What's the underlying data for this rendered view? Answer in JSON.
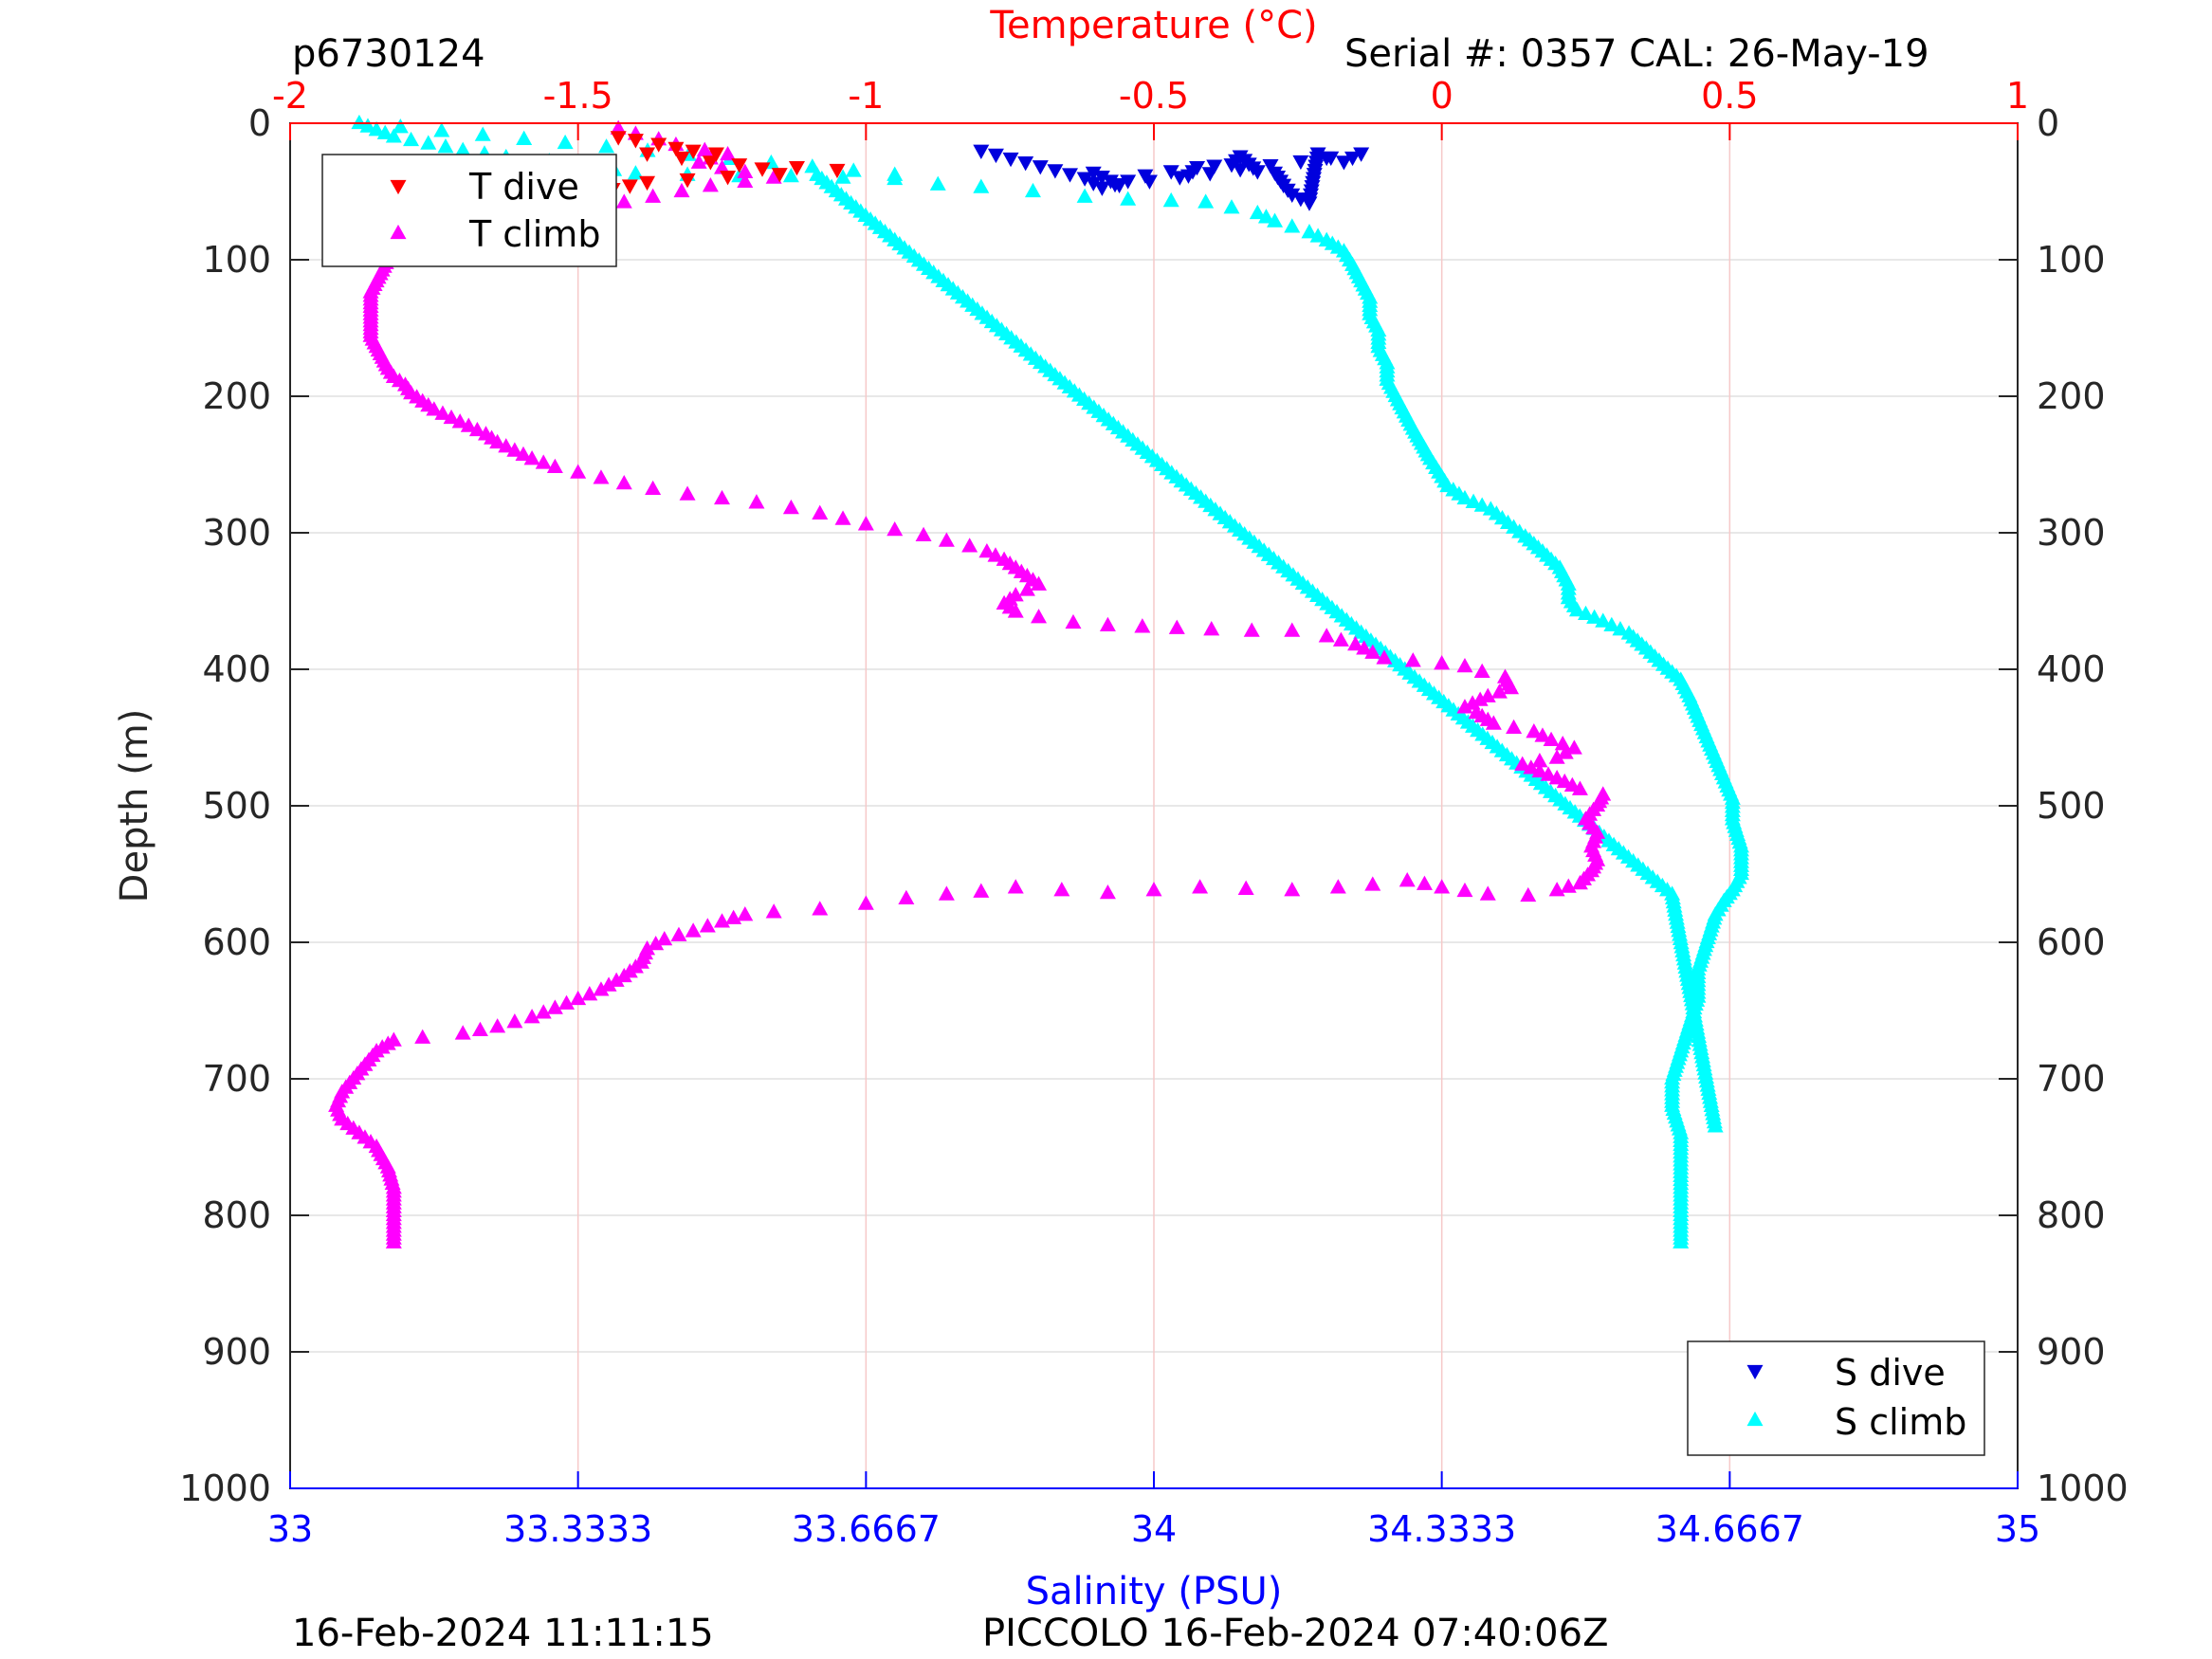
{
  "header": {
    "left": "p6730124",
    "right": "Serial #: 0357  CAL: 26-May-19"
  },
  "footer": {
    "left": "16-Feb-2024 11:11:15",
    "center": "PICCOLO 16-Feb-2024 07:40:06Z"
  },
  "colors": {
    "temperature_axis": "#ff0000",
    "salinity_axis": "#0000ff",
    "t_dive": "#ff0000",
    "t_climb": "#ff00ff",
    "s_dive": "#0000dd",
    "s_climb": "#00ffff",
    "grid": "#e0e0e0",
    "vgrid": "#f6c9c9"
  },
  "chart_data": {
    "type": "scatter",
    "grid": true,
    "y_axis": {
      "label": "Depth (m)",
      "range": [
        0,
        1000
      ],
      "reversed": true,
      "ticks": [
        0,
        100,
        200,
        300,
        400,
        500,
        600,
        700,
        800,
        900,
        1000
      ],
      "tick_labels": [
        "0",
        "100",
        "200",
        "300",
        "400",
        "500",
        "600",
        "700",
        "800",
        "900",
        "1000"
      ]
    },
    "temperature_axis": {
      "label": "Temperature (°C)",
      "position": "top",
      "range": [
        -2,
        1
      ],
      "ticks": [
        -2,
        -1.5,
        -1,
        -0.5,
        0,
        0.5,
        1
      ],
      "tick_labels": [
        "-2",
        "-1.5",
        "-1",
        "-0.5",
        "0",
        "0.5",
        "1"
      ]
    },
    "salinity_axis": {
      "label": "Salinity (PSU)",
      "position": "bottom",
      "range": [
        33,
        35
      ],
      "ticks": [
        33,
        33.3333,
        33.6667,
        34,
        34.3333,
        34.6667,
        35
      ],
      "tick_labels": [
        "33",
        "33.3333",
        "33.6667",
        "34",
        "34.3333",
        "34.6667",
        "35"
      ]
    },
    "legends": [
      {
        "position": "top-left",
        "entries": [
          {
            "label": "T dive",
            "series": "t_dive"
          },
          {
            "label": "T climb",
            "series": "t_climb"
          }
        ]
      },
      {
        "position": "bottom-right",
        "entries": [
          {
            "label": "S dive",
            "series": "s_dive"
          },
          {
            "label": "S climb",
            "series": "s_climb"
          }
        ]
      }
    ],
    "series": [
      {
        "name": "T dive",
        "key": "t_dive",
        "axis": "temperature",
        "marker": "triangle-down",
        "points": [
          [
            -1.43,
            10
          ],
          [
            -1.4,
            12
          ],
          [
            -1.36,
            15
          ],
          [
            -1.33,
            18
          ],
          [
            -1.3,
            20
          ],
          [
            -1.26,
            22
          ],
          [
            -1.38,
            22
          ],
          [
            -1.32,
            25
          ],
          [
            -1.27,
            28
          ],
          [
            -1.22,
            30
          ],
          [
            -1.18,
            33
          ],
          [
            -1.12,
            32
          ],
          [
            -1.05,
            34
          ],
          [
            -1.15,
            37
          ],
          [
            -1.24,
            39
          ],
          [
            -1.31,
            41
          ],
          [
            -1.38,
            43
          ],
          [
            -1.44,
            48
          ],
          [
            -1.48,
            54
          ],
          [
            -1.5,
            58
          ],
          [
            -1.51,
            62
          ]
        ]
      },
      {
        "name": "T climb",
        "key": "t_climb",
        "axis": "temperature",
        "marker": "triangle-up",
        "points": [
          [
            -1.82,
            820
          ],
          [
            -1.82,
            800
          ],
          [
            -1.82,
            780
          ],
          [
            -1.83,
            765
          ],
          [
            -1.85,
            750
          ],
          [
            -1.88,
            740
          ],
          [
            -1.91,
            730
          ],
          [
            -1.92,
            720
          ],
          [
            -1.91,
            710
          ],
          [
            -1.89,
            700
          ],
          [
            -1.87,
            690
          ],
          [
            -1.85,
            680
          ],
          [
            -1.82,
            672
          ],
          [
            -1.77,
            670
          ],
          [
            -1.7,
            667
          ],
          [
            -1.64,
            662
          ],
          [
            -1.58,
            655
          ],
          [
            -1.52,
            645
          ],
          [
            -1.46,
            635
          ],
          [
            -1.42,
            625
          ],
          [
            -1.39,
            615
          ],
          [
            -1.38,
            605
          ],
          [
            -1.35,
            598
          ],
          [
            -1.3,
            592
          ],
          [
            -1.25,
            585
          ],
          [
            -1.21,
            580
          ],
          [
            -1.16,
            578
          ],
          [
            -1.08,
            576
          ],
          [
            -1.0,
            572
          ],
          [
            -0.93,
            568
          ],
          [
            -0.86,
            565
          ],
          [
            -0.8,
            563
          ],
          [
            -0.74,
            560
          ],
          [
            -0.66,
            562
          ],
          [
            -0.58,
            564
          ],
          [
            -0.5,
            562
          ],
          [
            -0.42,
            560
          ],
          [
            -0.34,
            561
          ],
          [
            -0.26,
            562
          ],
          [
            -0.18,
            560
          ],
          [
            -0.12,
            558
          ],
          [
            -0.06,
            555
          ],
          [
            0.0,
            560
          ],
          [
            0.08,
            565
          ],
          [
            0.15,
            566
          ],
          [
            0.2,
            562
          ],
          [
            0.24,
            557
          ],
          [
            0.26,
            548
          ],
          [
            0.27,
            540
          ],
          [
            0.26,
            530
          ],
          [
            0.27,
            520
          ],
          [
            0.25,
            510
          ],
          [
            0.27,
            500
          ],
          [
            0.28,
            492
          ],
          [
            0.24,
            488
          ],
          [
            0.2,
            480
          ],
          [
            0.17,
            475
          ],
          [
            0.14,
            470
          ],
          [
            0.2,
            465
          ],
          [
            0.23,
            458
          ],
          [
            0.19,
            452
          ],
          [
            0.16,
            446
          ],
          [
            0.09,
            440
          ],
          [
            0.06,
            432
          ],
          [
            0.04,
            428
          ],
          [
            0.08,
            420
          ],
          [
            0.12,
            414
          ],
          [
            0.11,
            406
          ],
          [
            0.07,
            402
          ],
          [
            0.04,
            398
          ],
          [
            0.0,
            396
          ],
          [
            -0.05,
            394
          ],
          [
            -0.1,
            392
          ],
          [
            -0.12,
            388
          ],
          [
            -0.15,
            382
          ],
          [
            -0.2,
            376
          ],
          [
            -0.26,
            372
          ],
          [
            -0.33,
            372
          ],
          [
            -0.4,
            371
          ],
          [
            -0.46,
            370
          ],
          [
            -0.52,
            369
          ],
          [
            -0.58,
            368
          ],
          [
            -0.64,
            366
          ],
          [
            -0.7,
            362
          ],
          [
            -0.74,
            358
          ],
          [
            -0.76,
            352
          ],
          [
            -0.74,
            346
          ],
          [
            -0.72,
            342
          ],
          [
            -0.7,
            338
          ],
          [
            -0.72,
            332
          ],
          [
            -0.74,
            326
          ],
          [
            -0.76,
            320
          ],
          [
            -0.79,
            314
          ],
          [
            -0.82,
            310
          ],
          [
            -0.86,
            306
          ],
          [
            -0.9,
            302
          ],
          [
            -0.95,
            298
          ],
          [
            -1.0,
            294
          ],
          [
            -1.04,
            290
          ],
          [
            -1.08,
            286
          ],
          [
            -1.13,
            282
          ],
          [
            -1.19,
            278
          ],
          [
            -1.25,
            275
          ],
          [
            -1.31,
            272
          ],
          [
            -1.37,
            268
          ],
          [
            -1.42,
            264
          ],
          [
            -1.46,
            260
          ],
          [
            -1.5,
            256
          ],
          [
            -1.54,
            252
          ],
          [
            -1.58,
            246
          ],
          [
            -1.61,
            240
          ],
          [
            -1.64,
            234
          ],
          [
            -1.66,
            228
          ],
          [
            -1.69,
            222
          ],
          [
            -1.72,
            216
          ],
          [
            -1.75,
            210
          ],
          [
            -1.77,
            204
          ],
          [
            -1.79,
            198
          ],
          [
            -1.8,
            192
          ],
          [
            -1.82,
            186
          ],
          [
            -1.83,
            180
          ],
          [
            -1.84,
            172
          ],
          [
            -1.85,
            164
          ],
          [
            -1.86,
            156
          ],
          [
            -1.86,
            148
          ],
          [
            -1.86,
            140
          ],
          [
            -1.86,
            132
          ],
          [
            -1.86,
            124
          ],
          [
            -1.85,
            116
          ],
          [
            -1.84,
            108
          ],
          [
            -1.83,
            100
          ],
          [
            -1.81,
            92
          ],
          [
            -1.79,
            85
          ],
          [
            -1.76,
            79
          ],
          [
            -1.72,
            75
          ],
          [
            -1.67,
            71
          ],
          [
            -1.6,
            67
          ],
          [
            -1.53,
            64
          ],
          [
            -1.47,
            61
          ],
          [
            -1.42,
            58
          ],
          [
            -1.37,
            54
          ],
          [
            -1.32,
            50
          ],
          [
            -1.27,
            46
          ],
          [
            -1.21,
            43
          ],
          [
            -1.16,
            40
          ],
          [
            -1.21,
            36
          ],
          [
            -1.25,
            33
          ],
          [
            -1.29,
            29
          ],
          [
            -1.27,
            26
          ],
          [
            -1.24,
            23
          ],
          [
            -1.28,
            20
          ],
          [
            -1.33,
            16
          ],
          [
            -1.36,
            12
          ],
          [
            -1.4,
            8
          ],
          [
            -1.43,
            4
          ]
        ]
      },
      {
        "name": "S dive",
        "key": "s_dive",
        "axis": "salinity",
        "marker": "triangle-down",
        "points": [
          [
            33.8,
            20
          ],
          [
            33.92,
            40
          ],
          [
            33.94,
            47
          ],
          [
            33.97,
            42
          ],
          [
            33.99,
            38
          ],
          [
            34.02,
            35
          ],
          [
            34.04,
            38
          ],
          [
            34.05,
            32
          ],
          [
            34.07,
            31
          ],
          [
            34.09,
            30
          ],
          [
            34.1,
            24
          ],
          [
            34.12,
            35
          ],
          [
            34.14,
            36
          ],
          [
            34.15,
            45
          ],
          [
            34.16,
            52
          ],
          [
            34.18,
            58
          ],
          [
            34.19,
            22
          ],
          [
            34.2,
            25
          ],
          [
            34.22,
            28
          ],
          [
            34.23,
            25
          ],
          [
            34.24,
            22
          ],
          [
            33.96,
            45
          ],
          [
            33.93,
            36
          ]
        ]
      },
      {
        "name": "S climb",
        "key": "s_climb",
        "axis": "salinity",
        "marker": "triangle-up",
        "points": [
          [
            34.61,
            820
          ],
          [
            34.61,
            800
          ],
          [
            34.61,
            780
          ],
          [
            34.61,
            760
          ],
          [
            34.61,
            740
          ],
          [
            34.6,
            720
          ],
          [
            34.6,
            700
          ],
          [
            34.61,
            680
          ],
          [
            34.62,
            660
          ],
          [
            34.63,
            640
          ],
          [
            34.63,
            620
          ],
          [
            34.64,
            600
          ],
          [
            34.65,
            580
          ],
          [
            34.66,
            570
          ],
          [
            34.67,
            562
          ],
          [
            34.68,
            550
          ],
          [
            34.68,
            530
          ],
          [
            34.67,
            510
          ],
          [
            34.67,
            495
          ],
          [
            34.66,
            480
          ],
          [
            34.65,
            465
          ],
          [
            34.64,
            450
          ],
          [
            34.63,
            435
          ],
          [
            34.62,
            420
          ],
          [
            34.61,
            408
          ],
          [
            34.59,
            397
          ],
          [
            34.57,
            385
          ],
          [
            34.55,
            374
          ],
          [
            34.52,
            365
          ],
          [
            34.49,
            357
          ],
          [
            34.48,
            348
          ],
          [
            34.48,
            338
          ],
          [
            34.47,
            326
          ],
          [
            34.45,
            314
          ],
          [
            34.43,
            303
          ],
          [
            34.41,
            293
          ],
          [
            34.39,
            283
          ],
          [
            34.36,
            275
          ],
          [
            34.34,
            266
          ],
          [
            34.33,
            256
          ],
          [
            34.32,
            246
          ],
          [
            34.31,
            235
          ],
          [
            34.3,
            224
          ],
          [
            34.29,
            212
          ],
          [
            34.28,
            200
          ],
          [
            34.27,
            188
          ],
          [
            34.27,
            176
          ],
          [
            34.26,
            164
          ],
          [
            34.26,
            152
          ],
          [
            34.25,
            140
          ],
          [
            34.25,
            128
          ],
          [
            34.24,
            116
          ],
          [
            34.23,
            104
          ],
          [
            34.22,
            94
          ],
          [
            34.2,
            86
          ],
          [
            34.18,
            80
          ],
          [
            34.16,
            76
          ],
          [
            34.14,
            72
          ],
          [
            34.12,
            66
          ],
          [
            34.09,
            62
          ],
          [
            34.06,
            58
          ],
          [
            34.02,
            57
          ],
          [
            33.97,
            56
          ],
          [
            33.92,
            54
          ],
          [
            33.86,
            50
          ],
          [
            33.8,
            47
          ],
          [
            33.75,
            45
          ],
          [
            33.7,
            41
          ],
          [
            33.64,
            40
          ],
          [
            33.58,
            39
          ],
          [
            33.52,
            39
          ],
          [
            33.46,
            38
          ],
          [
            33.4,
            37
          ],
          [
            33.35,
            32
          ],
          [
            33.3,
            28
          ],
          [
            33.25,
            25
          ],
          [
            33.2,
            20
          ],
          [
            33.16,
            15
          ],
          [
            33.12,
            10
          ],
          [
            33.1,
            5
          ],
          [
            33.08,
            0
          ],
          [
            33.7,
            38
          ],
          [
            33.61,
            38
          ],
          [
            34.6,
            565
          ],
          [
            34.65,
            735
          ]
        ]
      }
    ]
  }
}
